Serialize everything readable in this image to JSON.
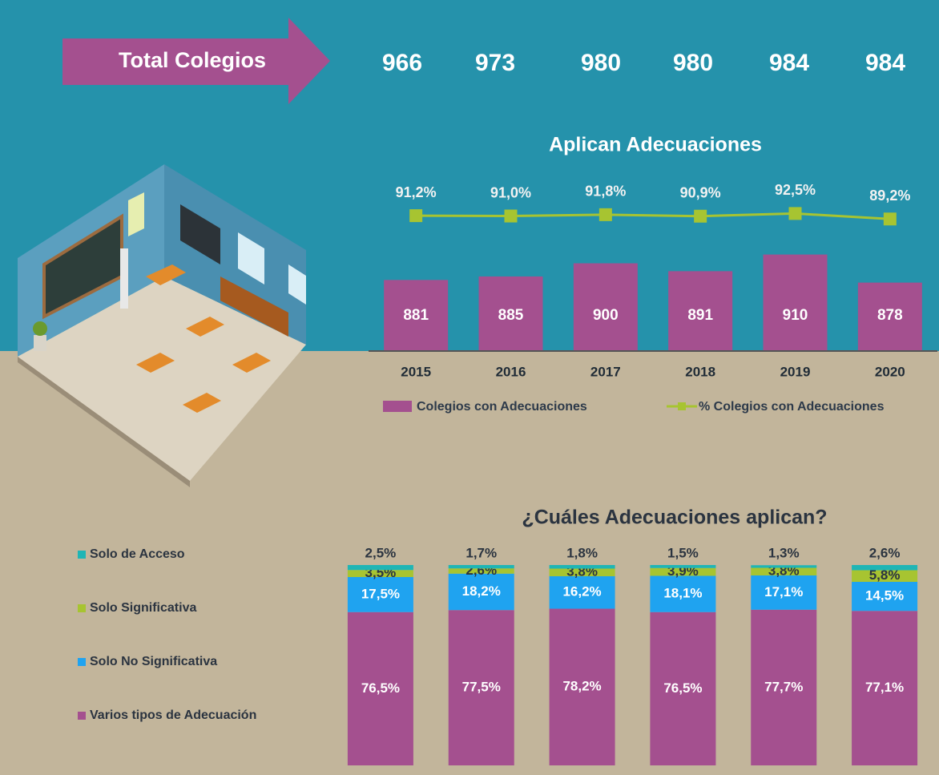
{
  "header": {
    "title": "Total Colegios",
    "totals": [
      966,
      973,
      980,
      980,
      984,
      984
    ]
  },
  "chart_data": [
    {
      "type": "combo",
      "title": "Aplican Adecuaciones",
      "categories": [
        "2015",
        "2016",
        "2017",
        "2018",
        "2019",
        "2020"
      ],
      "ylim": [
        800,
        990
      ],
      "y2lim": [
        10,
        110
      ],
      "series": [
        {
          "name": "Colegios con Adecuaciones",
          "type": "bar",
          "color": "#a4508f",
          "values": [
            881,
            885,
            900,
            891,
            910,
            878
          ]
        },
        {
          "name": "% Colegios con Adecuaciones",
          "type": "line",
          "axis": "y2",
          "color": "#a7c431",
          "values": [
            91.2,
            91.0,
            91.8,
            90.9,
            92.5,
            89.2
          ],
          "value_labels": [
            "91,2%",
            "91,0%",
            "91,8%",
            "90,9%",
            "92,5%",
            "89,2%"
          ]
        }
      ]
    },
    {
      "type": "stacked_bar",
      "title": "¿Cuáles Adecuaciones aplican?",
      "categories": [
        "2015",
        "2016",
        "2017",
        "2018",
        "2019",
        "2020"
      ],
      "ylim": [
        0,
        100
      ],
      "series": [
        {
          "name": "Varios tipos de Adecuación",
          "color": "#a4508f",
          "values": [
            76.5,
            77.5,
            78.2,
            76.5,
            77.7,
            77.1
          ],
          "value_labels": [
            "76,5%",
            "77,5%",
            "78,2%",
            "76,5%",
            "77,7%",
            "77,1%"
          ]
        },
        {
          "name": "Solo No Significativa",
          "color": "#1fa3f0",
          "values": [
            17.5,
            18.2,
            16.2,
            18.1,
            17.1,
            14.5
          ],
          "value_labels": [
            "17,5%",
            "18,2%",
            "16,2%",
            "18,1%",
            "17,1%",
            "14,5%"
          ]
        },
        {
          "name": "Solo Significativa",
          "color": "#a7c431",
          "values": [
            3.5,
            2.6,
            3.8,
            3.9,
            3.8,
            5.8
          ],
          "value_labels": [
            "3,5%",
            "2,6%",
            "3,8%",
            "3,9%",
            "3,8%",
            "5,8%"
          ]
        },
        {
          "name": "Solo de Acceso",
          "color": "#1fb5b5",
          "values": [
            2.5,
            1.7,
            1.8,
            1.5,
            1.3,
            2.6
          ],
          "value_labels": [
            "2,5%",
            "1,7%",
            "1,8%",
            "1,5%",
            "1,3%",
            "2,6%"
          ]
        }
      ]
    }
  ]
}
